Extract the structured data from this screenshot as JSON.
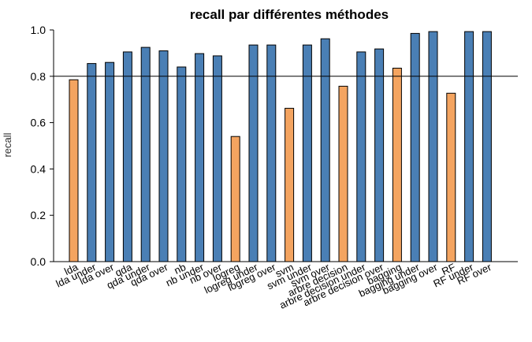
{
  "chart_data": {
    "type": "bar",
    "title": "recall par différentes méthodes",
    "xlabel": "",
    "ylabel": "recall",
    "ylim": [
      0,
      1
    ],
    "yticks": [
      "0.0",
      "0.2",
      "0.4",
      "0.6",
      "0.8",
      "1.0"
    ],
    "reference_line": 0.8,
    "categories": [
      "lda",
      "lda under",
      "lda over",
      "qda",
      "qda under",
      "qda over",
      "nb",
      "nb under",
      "nb over",
      "logreg",
      "logreg under",
      "logreg over",
      "svm",
      "svm under",
      "svm over",
      "arbre decision",
      "arbre decision under",
      "arbre decision over",
      "bagging",
      "bagging under",
      "bagging over",
      "RF",
      "RF under",
      "RF over"
    ],
    "values": [
      0.785,
      0.855,
      0.86,
      0.905,
      0.925,
      0.91,
      0.84,
      0.898,
      0.888,
      0.54,
      0.935,
      0.935,
      0.662,
      0.935,
      0.962,
      0.757,
      0.905,
      0.918,
      0.835,
      0.985,
      0.993,
      0.727,
      0.993,
      0.993
    ],
    "bar_colors": [
      "#F4A460",
      "#4A7FB5",
      "#4A7FB5",
      "#4A7FB5",
      "#4A7FB5",
      "#4A7FB5",
      "#4A7FB5",
      "#4A7FB5",
      "#4A7FB5",
      "#F4A460",
      "#4A7FB5",
      "#4A7FB5",
      "#F4A460",
      "#4A7FB5",
      "#4A7FB5",
      "#F4A460",
      "#4A7FB5",
      "#4A7FB5",
      "#F4A460",
      "#4A7FB5",
      "#4A7FB5",
      "#F4A460",
      "#4A7FB5",
      "#4A7FB5"
    ],
    "grid": false,
    "legend": "none"
  }
}
